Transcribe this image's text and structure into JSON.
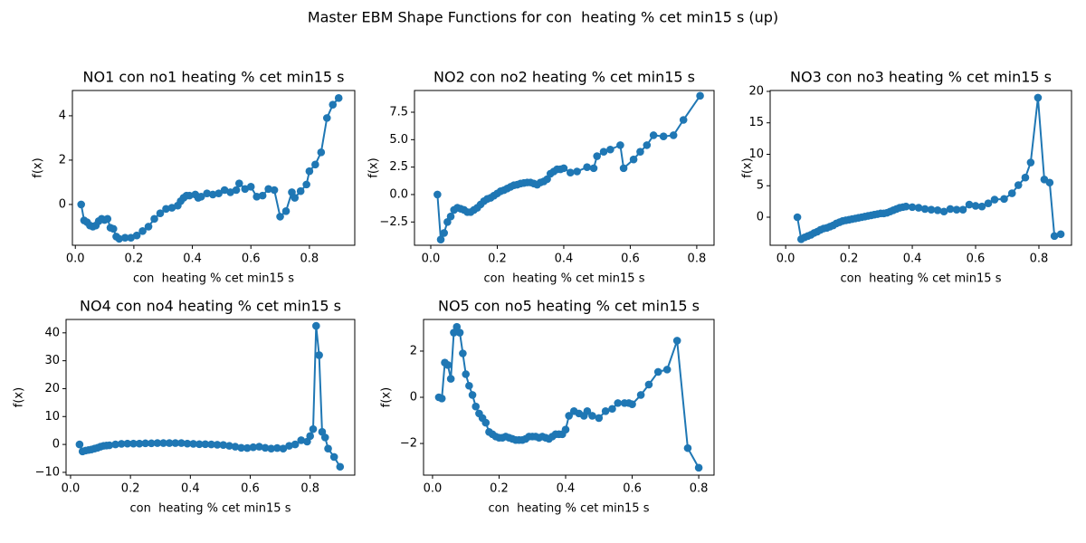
{
  "title": "Master EBM Shape Functions for con  heating % cet min15 s (up)",
  "chart_data": [
    {
      "type": "line",
      "title": "NO1 con no1 heating % cet min15 s",
      "xlabel": "con  heating % cet min15 s",
      "ylabel": "f(x)",
      "x": [
        0.02,
        0.03,
        0.04,
        0.05,
        0.06,
        0.07,
        0.08,
        0.09,
        0.1,
        0.11,
        0.12,
        0.13,
        0.14,
        0.15,
        0.17,
        0.19,
        0.21,
        0.23,
        0.25,
        0.27,
        0.29,
        0.31,
        0.33,
        0.35,
        0.36,
        0.37,
        0.38,
        0.39,
        0.41,
        0.42,
        0.43,
        0.45,
        0.47,
        0.49,
        0.51,
        0.53,
        0.55,
        0.56,
        0.58,
        0.6,
        0.62,
        0.64,
        0.66,
        0.68,
        0.7,
        0.72,
        0.74,
        0.75,
        0.77,
        0.79,
        0.8,
        0.82,
        0.84,
        0.86,
        0.88,
        0.9
      ],
      "series": [
        {
          "color": "#1f77b4",
          "values": [
            0,
            -0.72,
            -0.8,
            -0.95,
            -1,
            -0.95,
            -0.75,
            -0.65,
            -0.7,
            -0.65,
            -1.05,
            -1.1,
            -1.45,
            -1.55,
            -1.5,
            -1.5,
            -1.4,
            -1.2,
            -1,
            -0.65,
            -0.4,
            -0.2,
            -0.15,
            -0.05,
            0.15,
            0.3,
            0.4,
            0.4,
            0.45,
            0.3,
            0.35,
            0.5,
            0.45,
            0.5,
            0.65,
            0.55,
            0.65,
            0.95,
            0.7,
            0.8,
            0.35,
            0.4,
            0.7,
            0.65,
            -0.55,
            -0.3,
            0.55,
            0.3,
            0.6,
            0.9,
            1.5,
            1.8,
            2.35,
            3.9,
            4.5,
            4.8
          ]
        }
      ],
      "xlim": [
        -0.01,
        0.955
      ],
      "ylim": [
        -1.84,
        5.14
      ],
      "xticks": [
        {
          "value": 0,
          "label": "0.0"
        },
        0.2,
        0.4,
        0.6,
        0.8
      ],
      "yticks": [
        0,
        2,
        4
      ],
      "markers": true
    },
    {
      "type": "line",
      "title": "NO2 con no2 heating % cet min15 s",
      "xlabel": "con  heating % cet min15 s",
      "ylabel": "f(x)",
      "x": [
        0.02,
        0.03,
        0.04,
        0.05,
        0.06,
        0.07,
        0.08,
        0.09,
        0.1,
        0.11,
        0.12,
        0.13,
        0.14,
        0.15,
        0.16,
        0.17,
        0.18,
        0.19,
        0.2,
        0.21,
        0.22,
        0.23,
        0.24,
        0.25,
        0.26,
        0.27,
        0.28,
        0.29,
        0.3,
        0.31,
        0.32,
        0.33,
        0.34,
        0.35,
        0.36,
        0.37,
        0.38,
        0.39,
        0.4,
        0.42,
        0.44,
        0.47,
        0.49,
        0.5,
        0.52,
        0.54,
        0.57,
        0.58,
        0.61,
        0.63,
        0.65,
        0.67,
        0.7,
        0.73,
        0.76,
        0.81
      ],
      "series": [
        {
          "color": "#1f77b4",
          "values": [
            0,
            -4.1,
            -3.5,
            -2.5,
            -2,
            -1.4,
            -1.2,
            -1.3,
            -1.4,
            -1.6,
            -1.6,
            -1.4,
            -1.2,
            -0.9,
            -0.6,
            -0.4,
            -0.3,
            -0.1,
            0.1,
            0.3,
            0.4,
            0.55,
            0.7,
            0.85,
            0.9,
            1,
            1.05,
            1.1,
            1.1,
            1,
            0.9,
            1.1,
            1.2,
            1.4,
            1.9,
            2.1,
            2.3,
            2.3,
            2.4,
            2,
            2.1,
            2.5,
            2.4,
            3.5,
            3.9,
            4.1,
            4.5,
            2.4,
            3.2,
            3.9,
            4.5,
            5.4,
            5.3,
            5.4,
            6.8,
            9
          ]
        }
      ],
      "xlim": [
        -0.049,
        0.852
      ],
      "ylim": [
        -4.62,
        9.48
      ],
      "xticks": [
        {
          "value": 0,
          "label": "0.0"
        },
        0.2,
        0.4,
        0.6,
        0.8
      ],
      "yticks": [
        {
          "value": -2.5,
          "label": "−2.5"
        },
        {
          "value": 0,
          "label": "0.0"
        },
        2.5,
        {
          "value": 5,
          "label": "5.0"
        },
        7.5
      ],
      "markers": true
    },
    {
      "type": "line",
      "title": "NO3 con no3 heating % cet min15 s",
      "xlabel": "con  heating % cet min15 s",
      "ylabel": "f(x)",
      "x": [
        0.037,
        0.049,
        0.06,
        0.07,
        0.08,
        0.09,
        0.1,
        0.11,
        0.12,
        0.13,
        0.14,
        0.15,
        0.16,
        0.17,
        0.18,
        0.19,
        0.2,
        0.21,
        0.22,
        0.23,
        0.24,
        0.25,
        0.26,
        0.27,
        0.28,
        0.29,
        0.3,
        0.31,
        0.32,
        0.33,
        0.34,
        0.35,
        0.36,
        0.37,
        0.38,
        0.4,
        0.42,
        0.44,
        0.46,
        0.48,
        0.5,
        0.52,
        0.54,
        0.56,
        0.58,
        0.6,
        0.62,
        0.64,
        0.66,
        0.69,
        0.715,
        0.735,
        0.757,
        0.774,
        0.797,
        0.817,
        0.834,
        0.849,
        0.869
      ],
      "series": [
        {
          "color": "#1f77b4",
          "values": [
            0,
            -3.5,
            -3.2,
            -3,
            -2.8,
            -2.5,
            -2.3,
            -2,
            -1.8,
            -1.7,
            -1.5,
            -1.3,
            -1,
            -0.8,
            -0.6,
            -0.5,
            -0.4,
            -0.3,
            -0.2,
            -0.1,
            0,
            0.1,
            0.2,
            0.3,
            0.4,
            0.5,
            0.6,
            0.6,
            0.7,
            0.9,
            1.1,
            1.3,
            1.5,
            1.6,
            1.7,
            1.6,
            1.5,
            1.3,
            1.2,
            1.1,
            0.9,
            1.3,
            1.2,
            1.2,
            2,
            1.8,
            1.7,
            2.2,
            2.8,
            2.9,
            3.8,
            5.1,
            6.3,
            8.7,
            19,
            6,
            5.5,
            -3,
            -2.7
          ]
        }
      ],
      "xlim": [
        -0.049,
        0.903
      ],
      "ylim": [
        -4.46,
        20.14
      ],
      "xticks": [
        {
          "value": 0,
          "label": "0.0"
        },
        0.2,
        0.4,
        0.6,
        0.8
      ],
      "yticks": [
        0,
        5,
        10,
        15,
        20
      ],
      "markers": true
    },
    {
      "type": "line",
      "title": "NO4 con no4 heating % cet min15 s",
      "xlabel": "con  heating % cet min15 s",
      "ylabel": "f(x)",
      "x": [
        0.03,
        0.04,
        0.05,
        0.06,
        0.07,
        0.08,
        0.09,
        0.1,
        0.11,
        0.12,
        0.13,
        0.15,
        0.17,
        0.19,
        0.21,
        0.23,
        0.25,
        0.27,
        0.29,
        0.31,
        0.33,
        0.35,
        0.37,
        0.39,
        0.41,
        0.43,
        0.45,
        0.47,
        0.49,
        0.51,
        0.53,
        0.55,
        0.57,
        0.59,
        0.61,
        0.63,
        0.65,
        0.67,
        0.69,
        0.71,
        0.73,
        0.75,
        0.77,
        0.79,
        0.8,
        0.81,
        0.82,
        0.83,
        0.84,
        0.85,
        0.86,
        0.88,
        0.9
      ],
      "series": [
        {
          "color": "#1f77b4",
          "values": [
            0,
            -2.5,
            -2.2,
            -2,
            -1.8,
            -1.5,
            -1.2,
            -0.8,
            -0.5,
            -0.4,
            -0.3,
            0,
            0.2,
            0.3,
            0.3,
            0.3,
            0.4,
            0.4,
            0.5,
            0.5,
            0.5,
            0.5,
            0.5,
            0.3,
            0.2,
            0.1,
            0.1,
            0,
            -0.1,
            -0.2,
            -0.5,
            -0.8,
            -1.2,
            -1.3,
            -1,
            -0.8,
            -1.2,
            -1.5,
            -1.3,
            -1.5,
            -0.5,
            0,
            1.5,
            1,
            3,
            5.5,
            42.5,
            32,
            4.5,
            2.5,
            -1.5,
            -4.5,
            -8
          ]
        }
      ],
      "xlim": [
        -0.015,
        0.949
      ],
      "ylim": [
        -11,
        44.8
      ],
      "xticks": [
        {
          "value": 0,
          "label": "0.0"
        },
        0.2,
        0.4,
        0.6,
        0.8
      ],
      "yticks": [
        {
          "value": -10,
          "label": "−10"
        },
        0,
        10,
        20,
        30,
        40
      ],
      "markers": true
    },
    {
      "type": "line",
      "title": "NO5 con no5 heating % cet min15 s",
      "xlabel": "con  heating % cet min15 s",
      "ylabel": "f(x)",
      "x": [
        0.019,
        0.028,
        0.037,
        0.046,
        0.055,
        0.064,
        0.073,
        0.082,
        0.091,
        0.1,
        0.11,
        0.12,
        0.13,
        0.14,
        0.15,
        0.16,
        0.17,
        0.18,
        0.19,
        0.2,
        0.21,
        0.22,
        0.23,
        0.24,
        0.25,
        0.26,
        0.27,
        0.28,
        0.29,
        0.3,
        0.31,
        0.32,
        0.33,
        0.34,
        0.35,
        0.36,
        0.37,
        0.38,
        0.39,
        0.4,
        0.41,
        0.425,
        0.44,
        0.455,
        0.465,
        0.48,
        0.5,
        0.52,
        0.54,
        0.557,
        0.577,
        0.59,
        0.6,
        0.626,
        0.65,
        0.678,
        0.705,
        0.735,
        0.767,
        0.8
      ],
      "series": [
        {
          "color": "#1f77b4",
          "values": [
            0,
            -0.05,
            1.5,
            1.4,
            0.8,
            2.8,
            3.05,
            2.8,
            1.9,
            1,
            0.5,
            0.1,
            -0.4,
            -0.7,
            -0.9,
            -1.1,
            -1.5,
            -1.6,
            -1.7,
            -1.75,
            -1.75,
            -1.7,
            -1.75,
            -1.8,
            -1.85,
            -1.85,
            -1.85,
            -1.8,
            -1.7,
            -1.7,
            -1.7,
            -1.75,
            -1.7,
            -1.75,
            -1.8,
            -1.7,
            -1.6,
            -1.6,
            -1.6,
            -1.4,
            -0.8,
            -0.6,
            -0.7,
            -0.8,
            -0.6,
            -0.8,
            -0.9,
            -0.6,
            -0.5,
            -0.25,
            -0.25,
            -0.25,
            -0.3,
            0.1,
            0.55,
            1.1,
            1.2,
            2.45,
            -2.2,
            -3.05
          ]
        }
      ],
      "xlim": [
        -0.027,
        0.846
      ],
      "ylim": [
        -3.37,
        3.37
      ],
      "xticks": [
        {
          "value": 0,
          "label": "0.0"
        },
        0.2,
        0.4,
        0.6,
        0.8
      ],
      "yticks": [
        {
          "value": -2,
          "label": "−2"
        },
        0,
        2
      ],
      "markers": true
    }
  ]
}
